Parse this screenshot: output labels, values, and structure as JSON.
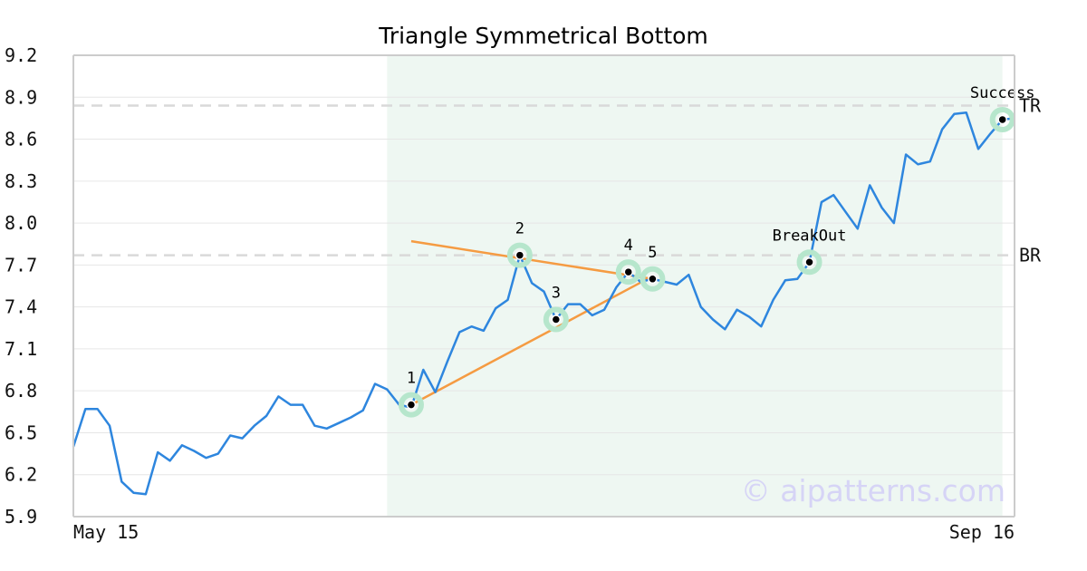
{
  "chart_data": {
    "type": "line",
    "title": "Triangle Symmetrical Bottom",
    "xlabel": "",
    "ylabel": "",
    "ylim": [
      5.9,
      9.2
    ],
    "yticks": [
      "5.9",
      "6.2",
      "6.5",
      "6.8",
      "7.1",
      "7.4",
      "7.7",
      "8.0",
      "8.3",
      "8.6",
      "8.9",
      "9.2"
    ],
    "x_tick_labels": [
      "May 15",
      "Sep 16"
    ],
    "grid": true,
    "series": [
      {
        "color": "#2e86de",
        "values": [
          6.4,
          6.67,
          6.67,
          6.55,
          6.15,
          6.07,
          6.06,
          6.36,
          6.3,
          6.41,
          6.37,
          6.32,
          6.35,
          6.48,
          6.46,
          6.55,
          6.62,
          6.76,
          6.7,
          6.7,
          6.55,
          6.53,
          6.57,
          6.61,
          6.66,
          6.85,
          6.81,
          6.7,
          6.68,
          6.95,
          6.79,
          7.01,
          7.22,
          7.26,
          7.23,
          7.39,
          7.45,
          7.77,
          7.57,
          7.51,
          7.31,
          7.42,
          7.42,
          7.34,
          7.38,
          7.54,
          7.65,
          7.58,
          7.6,
          7.58,
          7.56,
          7.63,
          7.4,
          7.31,
          7.24,
          7.38,
          7.33,
          7.26,
          7.45,
          7.59,
          7.6,
          7.72,
          8.15,
          8.2,
          8.08,
          7.96,
          8.27,
          8.11,
          8.0,
          8.49,
          8.42,
          8.44,
          8.67,
          8.78,
          8.79,
          8.53,
          8.64,
          8.74,
          8.75
        ]
      }
    ],
    "trendlines": [
      {
        "color": "#f59b42",
        "from": {
          "i": 28,
          "y": 7.87
        },
        "to": {
          "i": 48,
          "y": 7.6
        }
      },
      {
        "color": "#f59b42",
        "from": {
          "i": 28,
          "y": 6.7
        },
        "to": {
          "i": 48,
          "y": 7.62
        }
      }
    ],
    "reference_lines": [
      {
        "label": "TR",
        "value": 8.84
      },
      {
        "label": "BR",
        "value": 7.77
      }
    ],
    "highlight_region": {
      "from_index": 26,
      "to_index": 77,
      "color": "#eef7f2"
    },
    "annotations": [
      {
        "label": "1",
        "i": 28,
        "y": 6.7
      },
      {
        "label": "2",
        "i": 37,
        "y": 7.77
      },
      {
        "label": "3",
        "i": 40,
        "y": 7.31
      },
      {
        "label": "4",
        "i": 46,
        "y": 7.65
      },
      {
        "label": "5",
        "i": 48,
        "y": 7.6
      },
      {
        "label": "BreakOut",
        "i": 61,
        "y": 7.72
      },
      {
        "label": "Success",
        "i": 77,
        "y": 8.74
      }
    ]
  },
  "watermark": "© aipatterns.com"
}
